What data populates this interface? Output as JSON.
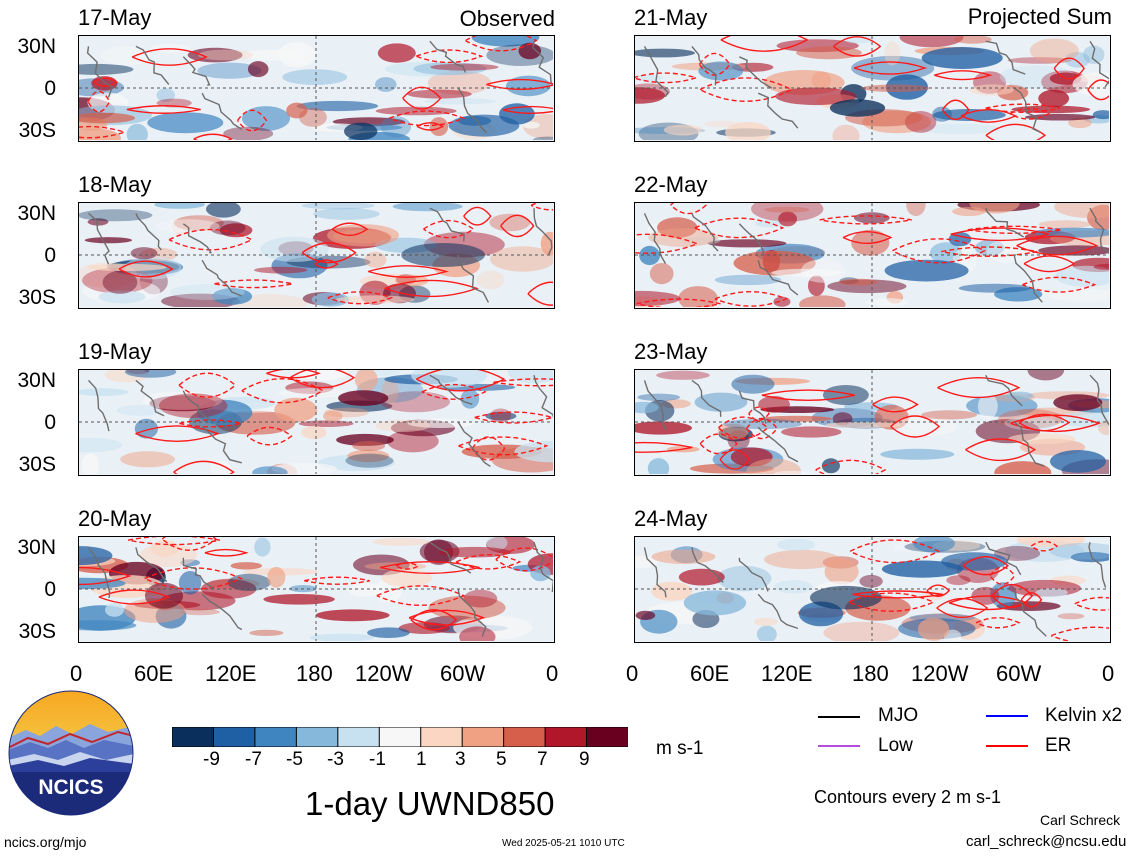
{
  "left_title": "Observed",
  "right_title": "Projected Sum",
  "observed_dates": [
    "17-May",
    "18-May",
    "19-May",
    "20-May"
  ],
  "projected_dates": [
    "21-May",
    "22-May",
    "23-May",
    "24-May"
  ],
  "lat_labels": [
    "30N",
    "0",
    "30S"
  ],
  "lon_labels": [
    "0",
    "60E",
    "120E",
    "180",
    "120W",
    "60W",
    "0"
  ],
  "colorbar": {
    "ticks": [
      "-9",
      "-7",
      "-5",
      "-3",
      "-1",
      "1",
      "3",
      "5",
      "7",
      "9"
    ],
    "colors": [
      "#0a2f5c",
      "#1f5fa3",
      "#3f85c0",
      "#86b8db",
      "#c8e1f0",
      "#f7f7f7",
      "#fbd6c2",
      "#f0a184",
      "#d65f4c",
      "#b0172a",
      "#6a0020"
    ],
    "units": "m s-1"
  },
  "plot_title": "1-day UWND850",
  "legend": {
    "items": [
      {
        "label": "MJO",
        "color": "#000000",
        "style": "solid"
      },
      {
        "label": "Kelvin x2",
        "color": "#0000ff",
        "style": "solid"
      },
      {
        "label": "Low",
        "color": "#b44dd8",
        "style": "solid"
      },
      {
        "label": "ER",
        "color": "#ff0000",
        "style": "solid"
      }
    ],
    "contour_note": "Contours every 2 m s-1"
  },
  "logo": {
    "text": "NCICS"
  },
  "footer": {
    "url": "ncics.org/mjo",
    "timestamp": "Wed 2025-05-21 1010 UTC",
    "author": "Carl Schreck",
    "email": "carl_schreck@ncsu.edu"
  }
}
